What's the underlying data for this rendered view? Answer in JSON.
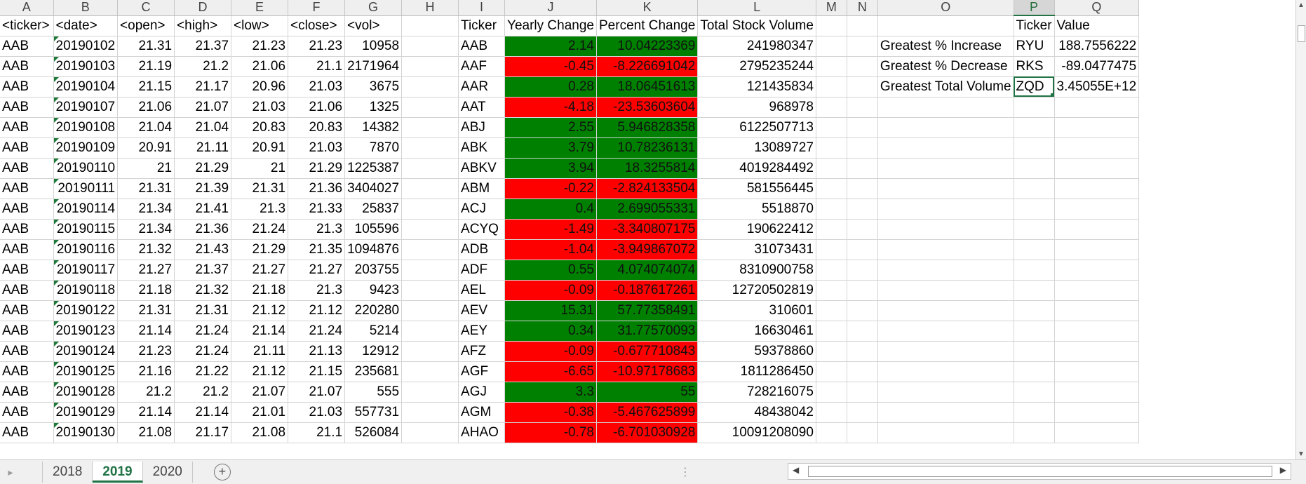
{
  "columns": [
    "A",
    "B",
    "C",
    "D",
    "E",
    "F",
    "G",
    "H",
    "I",
    "J",
    "K",
    "L",
    "M",
    "N",
    "O",
    "P",
    "Q"
  ],
  "selected_column": "P",
  "headers": {
    "a": "<ticker>",
    "b": "<date>",
    "c": "<open>",
    "d": "<high>",
    "e": "<low>",
    "f": "<close>",
    "g": "<vol>",
    "i": "Ticker",
    "j": "Yearly Change",
    "k": "Percent Change",
    "l": "Total Stock Volume",
    "p": "Ticker",
    "q": "Value"
  },
  "raw_rows": [
    [
      "AAB",
      "20190102",
      "21.31",
      "21.37",
      "21.23",
      "21.23",
      "10958"
    ],
    [
      "AAB",
      "20190103",
      "21.19",
      "21.2",
      "21.06",
      "21.1",
      "2171964"
    ],
    [
      "AAB",
      "20190104",
      "21.15",
      "21.17",
      "20.96",
      "21.03",
      "3675"
    ],
    [
      "AAB",
      "20190107",
      "21.06",
      "21.07",
      "21.03",
      "21.06",
      "1325"
    ],
    [
      "AAB",
      "20190108",
      "21.04",
      "21.04",
      "20.83",
      "20.83",
      "14382"
    ],
    [
      "AAB",
      "20190109",
      "20.91",
      "21.11",
      "20.91",
      "21.03",
      "7870"
    ],
    [
      "AAB",
      "20190110",
      "21",
      "21.29",
      "21",
      "21.29",
      "1225387"
    ],
    [
      "AAB",
      "20190111",
      "21.31",
      "21.39",
      "21.31",
      "21.36",
      "3404027"
    ],
    [
      "AAB",
      "20190114",
      "21.34",
      "21.41",
      "21.3",
      "21.33",
      "25837"
    ],
    [
      "AAB",
      "20190115",
      "21.34",
      "21.36",
      "21.24",
      "21.3",
      "105596"
    ],
    [
      "AAB",
      "20190116",
      "21.32",
      "21.43",
      "21.29",
      "21.35",
      "1094876"
    ],
    [
      "AAB",
      "20190117",
      "21.27",
      "21.37",
      "21.27",
      "21.27",
      "203755"
    ],
    [
      "AAB",
      "20190118",
      "21.18",
      "21.32",
      "21.18",
      "21.3",
      "9423"
    ],
    [
      "AAB",
      "20190122",
      "21.31",
      "21.31",
      "21.12",
      "21.12",
      "220280"
    ],
    [
      "AAB",
      "20190123",
      "21.14",
      "21.24",
      "21.14",
      "21.24",
      "5214"
    ],
    [
      "AAB",
      "20190124",
      "21.23",
      "21.24",
      "21.11",
      "21.13",
      "12912"
    ],
    [
      "AAB",
      "20190125",
      "21.16",
      "21.22",
      "21.12",
      "21.15",
      "235681"
    ],
    [
      "AAB",
      "20190128",
      "21.2",
      "21.2",
      "21.07",
      "21.07",
      "555"
    ],
    [
      "AAB",
      "20190129",
      "21.14",
      "21.14",
      "21.01",
      "21.03",
      "557731"
    ],
    [
      "AAB",
      "20190130",
      "21.08",
      "21.17",
      "21.08",
      "21.1",
      "526084"
    ]
  ],
  "summary_rows": [
    {
      "ticker": "AAB",
      "yearly": "2.14",
      "percent": "10.04223369",
      "volume": "241980347",
      "status": "positive"
    },
    {
      "ticker": "AAF",
      "yearly": "-0.45",
      "percent": "-8.226691042",
      "volume": "2795235244",
      "status": "negative"
    },
    {
      "ticker": "AAR",
      "yearly": "0.28",
      "percent": "18.06451613",
      "volume": "121435834",
      "status": "positive"
    },
    {
      "ticker": "AAT",
      "yearly": "-4.18",
      "percent": "-23.53603604",
      "volume": "968978",
      "status": "negative"
    },
    {
      "ticker": "ABJ",
      "yearly": "2.55",
      "percent": "5.946828358",
      "volume": "6122507713",
      "status": "positive"
    },
    {
      "ticker": "ABK",
      "yearly": "3.79",
      "percent": "10.78236131",
      "volume": "13089727",
      "status": "positive"
    },
    {
      "ticker": "ABKV",
      "yearly": "3.94",
      "percent": "18.3255814",
      "volume": "4019284492",
      "status": "positive"
    },
    {
      "ticker": "ABM",
      "yearly": "-0.22",
      "percent": "-2.824133504",
      "volume": "581556445",
      "status": "negative"
    },
    {
      "ticker": "ACJ",
      "yearly": "0.4",
      "percent": "2.699055331",
      "volume": "5518870",
      "status": "positive"
    },
    {
      "ticker": "ACYQ",
      "yearly": "-1.49",
      "percent": "-3.340807175",
      "volume": "190622412",
      "status": "negative"
    },
    {
      "ticker": "ADB",
      "yearly": "-1.04",
      "percent": "-3.949867072",
      "volume": "31073431",
      "status": "negative"
    },
    {
      "ticker": "ADF",
      "yearly": "0.55",
      "percent": "4.074074074",
      "volume": "8310900758",
      "status": "positive"
    },
    {
      "ticker": "AEL",
      "yearly": "-0.09",
      "percent": "-0.187617261",
      "volume": "12720502819",
      "status": "negative"
    },
    {
      "ticker": "AEV",
      "yearly": "15.31",
      "percent": "57.77358491",
      "volume": "310601",
      "status": "positive"
    },
    {
      "ticker": "AEY",
      "yearly": "0.34",
      "percent": "31.77570093",
      "volume": "16630461",
      "status": "positive"
    },
    {
      "ticker": "AFZ",
      "yearly": "-0.09",
      "percent": "-0.677710843",
      "volume": "59378860",
      "status": "negative"
    },
    {
      "ticker": "AGF",
      "yearly": "-6.65",
      "percent": "-10.97178683",
      "volume": "1811286450",
      "status": "negative"
    },
    {
      "ticker": "AGJ",
      "yearly": "3.3",
      "percent": "55",
      "volume": "728216075",
      "status": "positive"
    },
    {
      "ticker": "AGM",
      "yearly": "-0.38",
      "percent": "-5.467625899",
      "volume": "48438042",
      "status": "negative"
    },
    {
      "ticker": "AHAO",
      "yearly": "-0.78",
      "percent": "-6.701030928",
      "volume": "10091208090",
      "status": "negative"
    }
  ],
  "greatest": [
    {
      "label": "Greatest % Increase",
      "ticker": "RYU",
      "value": "188.7556222"
    },
    {
      "label": "Greatest % Decrease",
      "ticker": "RKS",
      "value": "-89.0477475"
    },
    {
      "label": "Greatest Total Volume",
      "ticker": "ZQD",
      "value": "3.45055E+12"
    }
  ],
  "sheet_tabs": [
    "2018",
    "2019",
    "2020"
  ],
  "active_tab": "2019",
  "colors": {
    "positive": "#008000",
    "negative": "#ff0000",
    "accent": "#217346"
  },
  "icons": {
    "add_sheet": "plus-circle-icon",
    "scroll_left": "triangle-left-icon",
    "scroll_right": "triangle-right-icon"
  }
}
